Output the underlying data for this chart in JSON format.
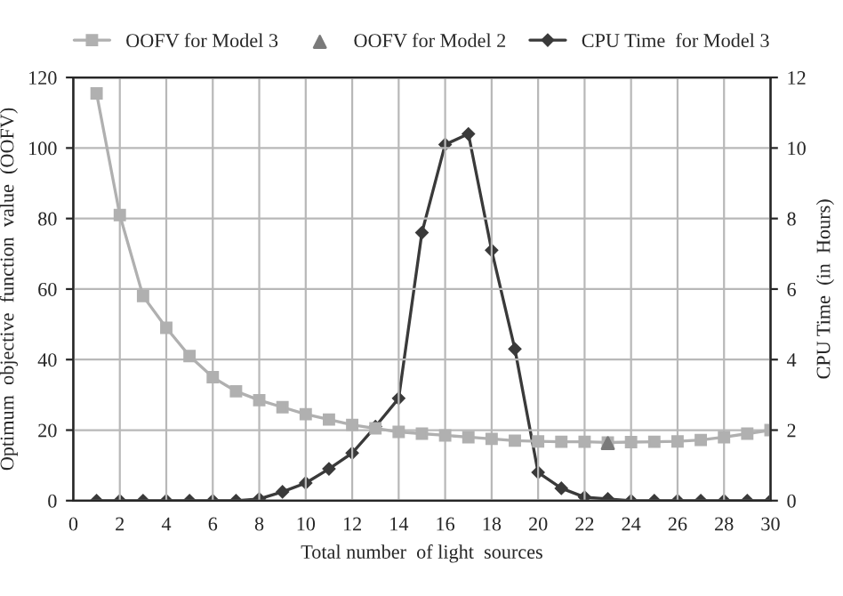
{
  "chart_data": {
    "type": "line",
    "xlabel": "Total number  of light  sources",
    "ylabel": "Optimum  objective  function  value  (OOFV)",
    "y2label": "CPU Time  (in  Hours)",
    "x": [
      1,
      2,
      3,
      4,
      5,
      6,
      7,
      8,
      9,
      10,
      11,
      12,
      13,
      14,
      15,
      16,
      17,
      18,
      19,
      20,
      21,
      22,
      23,
      24,
      25,
      26,
      27,
      28,
      29,
      30
    ],
    "series": [
      {
        "name": "OOFV for Model 3",
        "color": "#b0b0b0",
        "marker": "square",
        "values": [
          115.5,
          81,
          58,
          49,
          41,
          35,
          31,
          28.5,
          26.5,
          24.5,
          23,
          21.5,
          20.5,
          19.5,
          19,
          18.5,
          18,
          17.5,
          17,
          16.8,
          16.7,
          16.7,
          16.5,
          16.6,
          16.7,
          16.8,
          17.2,
          18,
          19,
          20
        ]
      },
      {
        "name": "OOFV for Model 2",
        "type": "scatter",
        "color": "#7a7a7a",
        "marker": "triangle",
        "x": [
          23
        ],
        "values": [
          16.3
        ]
      },
      {
        "name": "CPU Time  for Model 3",
        "color": "#3a3a3a",
        "marker": "diamond",
        "axis": "y2",
        "values": [
          0,
          0,
          0,
          0,
          0,
          0,
          0,
          0.05,
          0.25,
          0.5,
          0.9,
          1.35,
          2.1,
          2.9,
          7.6,
          10.1,
          10.4,
          7.1,
          4.3,
          0.8,
          0.35,
          0.1,
          0.05,
          0,
          0,
          0,
          0,
          0,
          0,
          0
        ]
      }
    ],
    "xlim": [
      0,
      30
    ],
    "xticks": [
      0,
      2,
      4,
      6,
      8,
      10,
      12,
      14,
      16,
      18,
      20,
      22,
      24,
      26,
      28,
      30
    ],
    "ylim": [
      0,
      120
    ],
    "yticks": [
      0,
      20,
      40,
      60,
      80,
      100,
      120
    ],
    "y2lim": [
      0,
      12
    ],
    "y2ticks": [
      0,
      2,
      4,
      6,
      8,
      10,
      12
    ],
    "grid": true,
    "legend": "top"
  }
}
